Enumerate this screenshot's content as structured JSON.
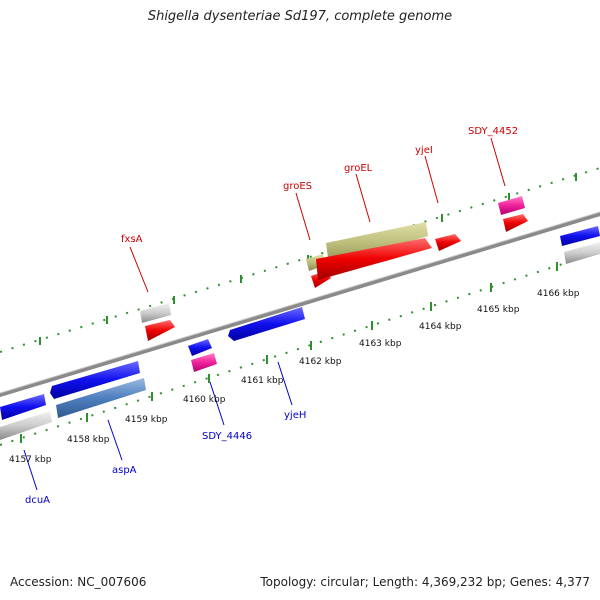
{
  "title": "Shigella dysenteriae Sd197, complete genome",
  "footer": {
    "accession": "Accession: NC_007606",
    "topology": "Topology: circular; Length: 4,369,232 bp; Genes: 4,377"
  },
  "colors": {
    "backbone": "#909090",
    "ticks": "#2f8f2f",
    "label_forward": "#cc0000",
    "label_reverse": "#0000cc"
  },
  "axis": {
    "ticks": [
      "4157 kbp",
      "4158 kbp",
      "4159 kbp",
      "4160 kbp",
      "4161 kbp",
      "4162 kbp",
      "4163 kbp",
      "4164 kbp",
      "4165 kbp",
      "4166 kbp"
    ]
  },
  "gene_labels": {
    "fxsA": "fxsA",
    "groES": "groES",
    "groEL": "groEL",
    "yjeI": "yjeI",
    "sdy4452": "SDY_4452",
    "dcuA": "dcuA",
    "aspA": "aspA",
    "sdy4446": "SDY_4446",
    "yjeH": "yjeH"
  }
}
